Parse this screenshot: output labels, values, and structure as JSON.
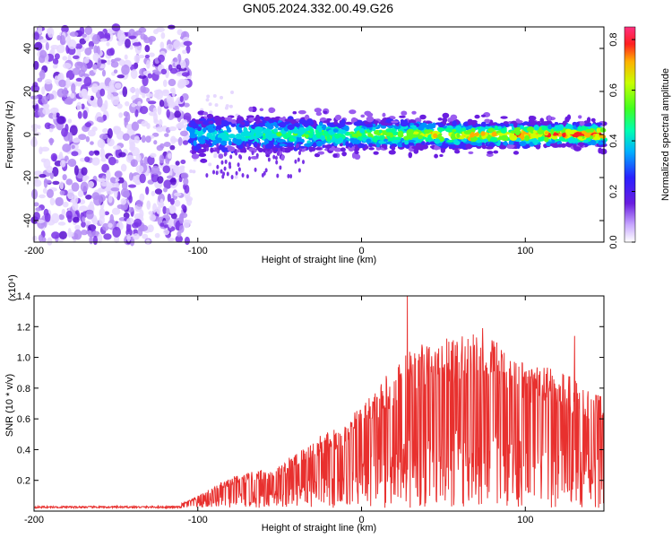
{
  "title": "GN05.2024.332.00.49.G26",
  "chart_data": [
    {
      "type": "heatmap",
      "xlabel": "Height of straight line (km)",
      "ylabel": "Frequency (Hz)",
      "xlim": [
        -200,
        148
      ],
      "ylim": [
        -50,
        50
      ],
      "xticks": [
        -200,
        -100,
        0,
        100
      ],
      "yticks": [
        -40,
        -20,
        0,
        20,
        40
      ],
      "colorbar": {
        "label": "Normalized spectral amplitude",
        "range": [
          0.0,
          0.85
        ],
        "ticks": [
          "0.0",
          "0.2",
          "0.4",
          "0.6",
          "0.8"
        ]
      },
      "regions": [
        {
          "x_range": [
            -200,
            -105
          ],
          "freq_range": [
            -50,
            50
          ],
          "amplitude": "low, broadband (noise)"
        },
        {
          "x_range": [
            -105,
            148
          ],
          "freq_center": 0,
          "freq_halfwidth": 8,
          "amplitude": "0.2–0.85 along 0 Hz line"
        }
      ],
      "colors": {
        "low": "#6a1de0",
        "mid": "#00ff80",
        "high": "#ff0000"
      }
    },
    {
      "type": "line",
      "xlabel": "Height of straight line (km)",
      "ylabel": "SNR (10 * v/v)",
      "scale_label": "(x10⁴)",
      "xlim": [
        -200,
        148
      ],
      "ylim": [
        0,
        1.4
      ],
      "xticks": [
        -200,
        -100,
        0,
        100
      ],
      "yticks": [
        "0.2",
        "0.4",
        "0.6",
        "0.8",
        "1.0",
        "1.2",
        "1.4"
      ],
      "series": [
        {
          "color": "#e8302e",
          "envelope": [
            {
              "x": -200,
              "y": 0.03
            },
            {
              "x": -110,
              "y": 0.03
            },
            {
              "x": -100,
              "y": 0.08
            },
            {
              "x": -80,
              "y": 0.2
            },
            {
              "x": -50,
              "y": 0.28
            },
            {
              "x": -30,
              "y": 0.45
            },
            {
              "x": -10,
              "y": 0.55
            },
            {
              "x": 10,
              "y": 0.8
            },
            {
              "x": 30,
              "y": 1.05
            },
            {
              "x": 50,
              "y": 1.1
            },
            {
              "x": 75,
              "y": 1.15
            },
            {
              "x": 100,
              "y": 0.95
            },
            {
              "x": 120,
              "y": 0.9
            },
            {
              "x": 148,
              "y": 0.75
            }
          ],
          "peaks": [
            {
              "x": 28,
              "y": 1.4
            },
            {
              "x": 74,
              "y": 1.19
            },
            {
              "x": 65,
              "y": 1.12
            },
            {
              "x": 130,
              "y": 1.14
            }
          ]
        }
      ]
    }
  ]
}
